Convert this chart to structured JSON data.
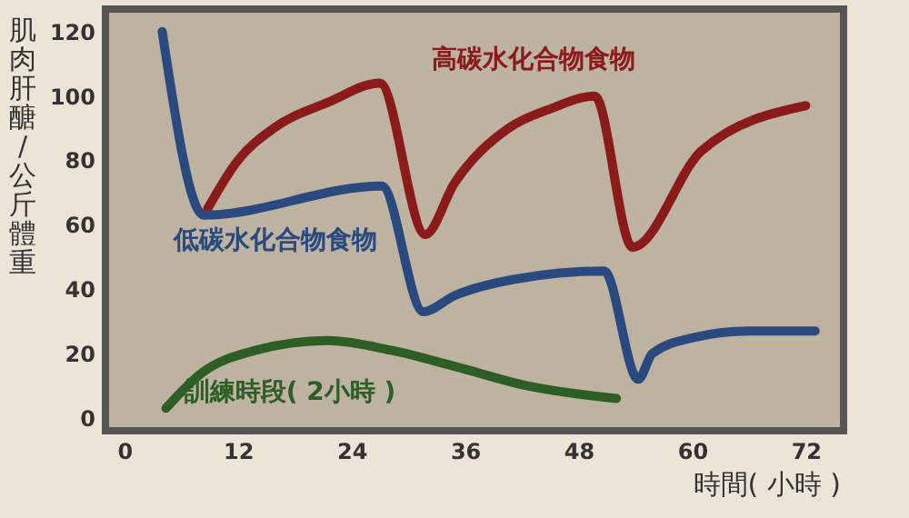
{
  "chart_data": {
    "type": "line",
    "xlabel": "時間( 小時 )",
    "ylabel": "肌肉肝醣/公斤體重",
    "xlim": [
      -2,
      76
    ],
    "xticks": [
      0,
      12,
      24,
      36,
      48,
      60,
      72
    ],
    "ylim": [
      -4,
      127
    ],
    "yticks": [
      0,
      20,
      40,
      60,
      80,
      100,
      120
    ],
    "grid": false,
    "series": [
      {
        "name": "高碳水化合物食物",
        "color": "#8b1a1a",
        "x": [
          8.8,
          12,
          15.8,
          21.5,
          27,
          31.8,
          34.9,
          40.6,
          45,
          49.7,
          53.7,
          61,
          72
        ],
        "values": [
          65,
          80,
          90,
          98,
          104,
          57,
          73,
          90,
          96,
          100,
          53,
          83,
          97
        ]
      },
      {
        "name": "低碳水化合物食物",
        "color": "#2a4a7f",
        "x": [
          4,
          8.4,
          27.2,
          31.6,
          34.9,
          41.1,
          50.7,
          54.3,
          55.8,
          60.2,
          66,
          73
        ],
        "values": [
          120,
          63,
          72,
          33,
          38,
          43,
          45.6,
          12,
          20,
          25,
          27,
          27
        ]
      },
      {
        "name": "訓練時段( 2小時 )",
        "color": "#2e5e26",
        "x": [
          4.4,
          8.2,
          13.9,
          21.5,
          28.2,
          34.9,
          42.5,
          52
        ],
        "values": [
          3,
          14,
          21,
          24,
          21,
          16,
          10,
          6
        ]
      }
    ]
  }
}
